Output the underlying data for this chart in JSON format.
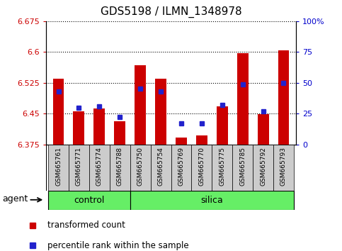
{
  "title": "GDS5198 / ILMN_1348978",
  "samples": [
    "GSM665761",
    "GSM665771",
    "GSM665774",
    "GSM665788",
    "GSM665750",
    "GSM665754",
    "GSM665769",
    "GSM665770",
    "GSM665775",
    "GSM665785",
    "GSM665792",
    "GSM665793"
  ],
  "n_control": 4,
  "bar_values": [
    6.535,
    6.455,
    6.462,
    6.432,
    6.568,
    6.535,
    6.392,
    6.397,
    6.468,
    6.597,
    6.448,
    6.605
  ],
  "pct_values": [
    43,
    30,
    31,
    22,
    45,
    43,
    17,
    17,
    32,
    49,
    27,
    50
  ],
  "ymin": 6.375,
  "ymax": 6.675,
  "ytick_vals": [
    6.375,
    6.45,
    6.525,
    6.6,
    6.675
  ],
  "ytick_labels": [
    "6.375",
    "6.45",
    "6.525",
    "6.6",
    "6.675"
  ],
  "y2tick_vals": [
    0,
    25,
    50,
    75,
    100
  ],
  "y2tick_labels": [
    "0",
    "25",
    "50",
    "75",
    "100%"
  ],
  "bar_color": "#cc0000",
  "marker_color": "#2222cc",
  "bar_width": 0.55,
  "green_color": "#66ee66",
  "gray_color": "#cccccc",
  "legend_items": [
    "transformed count",
    "percentile rank within the sample"
  ],
  "agent_label": "agent",
  "left_tick_color": "#cc0000",
  "right_tick_color": "#0000cc",
  "grid_color": "#000000",
  "spine_color": "#000000"
}
